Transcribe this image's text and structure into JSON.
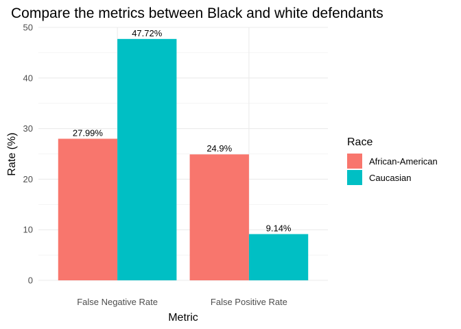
{
  "chart_data": {
    "type": "bar",
    "title": "Compare the metrics between Black and white defendants",
    "xlabel": "Metric",
    "ylabel": "Rate (%)",
    "categories": [
      "False Negative Rate",
      "False Positive Rate"
    ],
    "series": [
      {
        "name": "African-American",
        "color": "#F8766D",
        "values": [
          27.99,
          24.9
        ],
        "labels": [
          "27.99%",
          "24.9%"
        ]
      },
      {
        "name": "Caucasian",
        "color": "#00BFC4",
        "values": [
          47.72,
          9.14
        ],
        "labels": [
          "47.72%",
          "9.14%"
        ]
      }
    ],
    "ylim": [
      0,
      50
    ],
    "yticks": [
      "0",
      "10",
      "20",
      "30",
      "40",
      "50"
    ],
    "grid": true,
    "legend": {
      "title": "Race",
      "position": "right"
    }
  }
}
